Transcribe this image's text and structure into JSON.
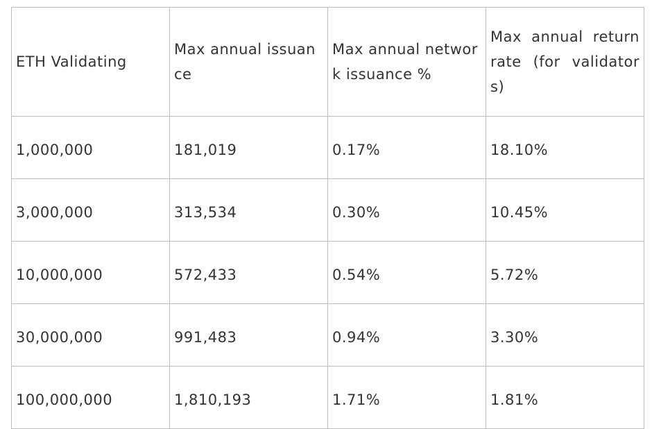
{
  "table": {
    "headers": [
      "ETH Validating",
      "Max annual issuance",
      "Max annual network issuance %",
      "Max annual return rate (for validators)"
    ],
    "rows": [
      [
        "1,000,000",
        "181,019",
        "0.17%",
        "18.10%"
      ],
      [
        "3,000,000",
        "313,534",
        "0.30%",
        "10.45%"
      ],
      [
        "10,000,000",
        "572,433",
        "0.54%",
        "5.72%"
      ],
      [
        "30,000,000",
        "991,483",
        "0.94%",
        "3.30%"
      ],
      [
        "100,000,000",
        "1,810,193",
        "1.71%",
        "1.81%"
      ]
    ]
  }
}
